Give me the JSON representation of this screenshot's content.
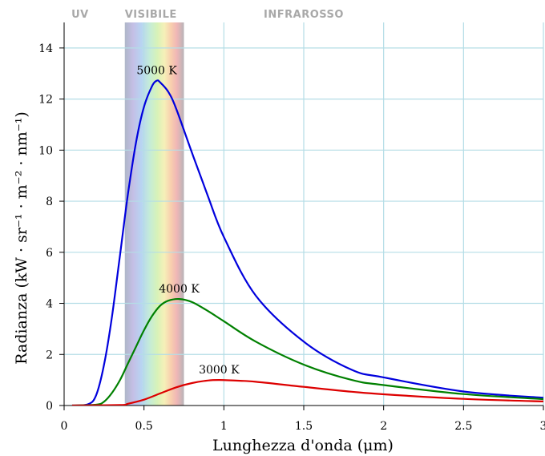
{
  "chart_data": {
    "type": "line",
    "xlabel": "Lunghezza d'onda (μm)",
    "ylabel": "Radianza (kW · sr⁻¹ · m⁻² · nm⁻¹)",
    "xlim": [
      0,
      3
    ],
    "ylim": [
      0,
      15
    ],
    "xticks": [
      0,
      0.5,
      1,
      1.5,
      2,
      2.5,
      3
    ],
    "xtick_labels": [
      "0",
      "0.5",
      "1",
      "1.5",
      "2",
      "2.5",
      "3"
    ],
    "yticks": [
      0,
      2,
      4,
      6,
      8,
      10,
      12,
      14
    ],
    "ytick_labels": [
      "0",
      "2",
      "4",
      "6",
      "8",
      "10",
      "12",
      "14"
    ],
    "grid": true,
    "regions": [
      {
        "label": "UV"
      },
      {
        "label": "VISIBILE",
        "x_range": [
          0.38,
          0.75
        ]
      },
      {
        "label": "INFRAROSSO"
      }
    ],
    "series": [
      {
        "name": "5000 K",
        "color": "#0000dd",
        "temperature_K": 5000,
        "x": [
          0.05,
          0.15,
          0.2,
          0.25,
          0.3,
          0.35,
          0.4,
          0.45,
          0.5,
          0.55,
          0.58,
          0.6,
          0.65,
          0.7,
          0.8,
          0.9,
          1.0,
          1.2,
          1.5,
          1.8,
          2.0,
          2.5,
          3.0
        ],
        "y": [
          0.0,
          0.05,
          0.4,
          1.6,
          3.5,
          5.9,
          8.3,
          10.3,
          11.7,
          12.5,
          12.72,
          12.66,
          12.3,
          11.65,
          9.9,
          8.2,
          6.6,
          4.3,
          2.5,
          1.4,
          1.1,
          0.55,
          0.3
        ]
      },
      {
        "name": "4000 K",
        "color": "#008000",
        "temperature_K": 4000,
        "x": [
          0.05,
          0.2,
          0.25,
          0.3,
          0.35,
          0.4,
          0.45,
          0.5,
          0.55,
          0.6,
          0.65,
          0.72,
          0.8,
          0.9,
          1.0,
          1.2,
          1.5,
          1.8,
          2.0,
          2.5,
          3.0
        ],
        "y": [
          0.0,
          0.03,
          0.15,
          0.5,
          1.0,
          1.65,
          2.3,
          2.95,
          3.5,
          3.9,
          4.1,
          4.17,
          4.05,
          3.7,
          3.3,
          2.5,
          1.6,
          1.0,
          0.8,
          0.45,
          0.25
        ]
      },
      {
        "name": "3000 K",
        "color": "#dd0000",
        "temperature_K": 3000,
        "x": [
          0.05,
          0.35,
          0.4,
          0.5,
          0.6,
          0.7,
          0.8,
          0.9,
          0.97,
          1.1,
          1.2,
          1.5,
          1.8,
          2.0,
          2.5,
          3.0
        ],
        "y": [
          0.0,
          0.02,
          0.07,
          0.23,
          0.47,
          0.71,
          0.88,
          0.98,
          1.0,
          0.97,
          0.93,
          0.73,
          0.54,
          0.44,
          0.26,
          0.16
        ]
      }
    ]
  }
}
